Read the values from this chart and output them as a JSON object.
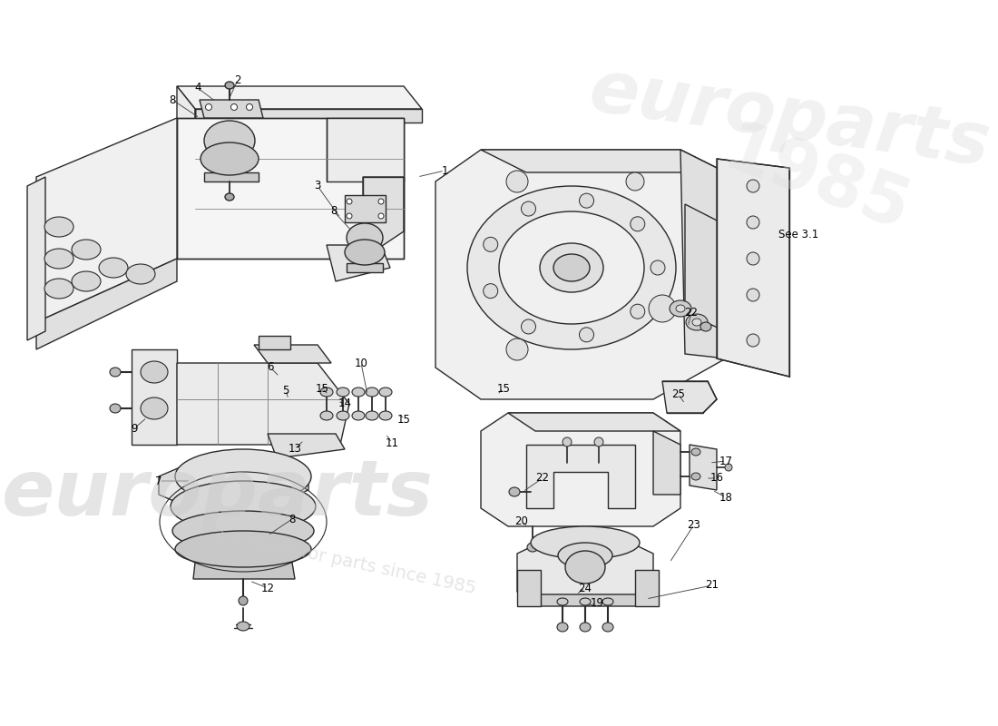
{
  "bg_color": "#ffffff",
  "line_color": "#2a2a2a",
  "line_color_light": "#555555",
  "watermark1": "europarts",
  "watermark2": "a passion for parts since 1985",
  "see_ref": "See 3.1",
  "fig_width": 11.0,
  "fig_height": 8.0,
  "dpi": 100,
  "parts": [
    [
      "1",
      490,
      188
    ],
    [
      "2",
      262,
      88
    ],
    [
      "3",
      350,
      205
    ],
    [
      "4",
      218,
      97
    ],
    [
      "5",
      315,
      430
    ],
    [
      "6",
      298,
      405
    ],
    [
      "7",
      175,
      530
    ],
    [
      "8",
      190,
      110
    ],
    [
      "8",
      368,
      233
    ],
    [
      "8",
      322,
      572
    ],
    [
      "9",
      148,
      472
    ],
    [
      "10",
      398,
      400
    ],
    [
      "11",
      432,
      488
    ],
    [
      "12",
      295,
      648
    ],
    [
      "13",
      325,
      495
    ],
    [
      "14",
      380,
      445
    ],
    [
      "15",
      355,
      428
    ],
    [
      "15",
      445,
      462
    ],
    [
      "15",
      555,
      428
    ],
    [
      "16",
      790,
      527
    ],
    [
      "17",
      800,
      508
    ],
    [
      "18",
      800,
      548
    ],
    [
      "19",
      658,
      665
    ],
    [
      "20",
      575,
      575
    ],
    [
      "21",
      785,
      645
    ],
    [
      "22",
      762,
      345
    ],
    [
      "22",
      598,
      527
    ],
    [
      "23",
      765,
      578
    ],
    [
      "24",
      645,
      648
    ],
    [
      "25",
      748,
      435
    ]
  ]
}
